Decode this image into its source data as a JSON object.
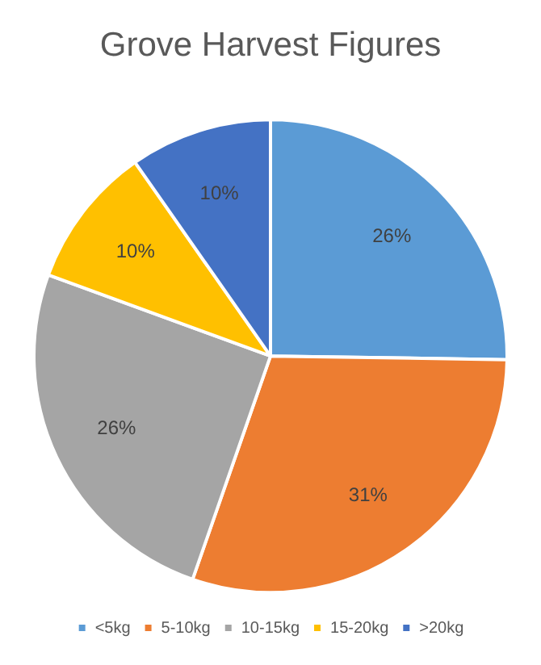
{
  "chart_data": {
    "type": "pie",
    "title": "Grove Harvest Figures",
    "categories": [
      "<5kg",
      "5-10kg",
      "10-15kg",
      "15-20kg",
      ">20kg"
    ],
    "values": [
      26,
      31,
      26,
      10,
      10
    ],
    "colors": [
      "#5b9bd5",
      "#ed7d31",
      "#a5a5a5",
      "#ffc000",
      "#4472c4"
    ],
    "value_labels": [
      "26%",
      "31%",
      "26%",
      "10%",
      "10%"
    ],
    "legend": "bottom"
  }
}
